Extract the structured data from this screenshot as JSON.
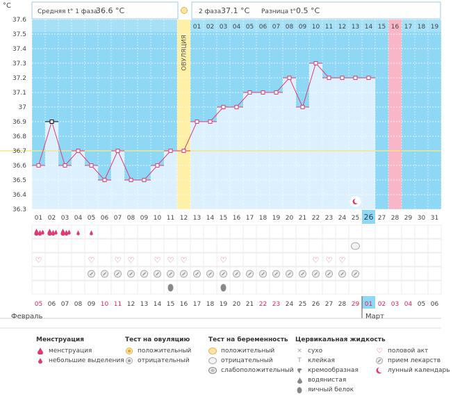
{
  "header": {
    "unit": "°C",
    "phase1_label": "Средняя t° 1 фаза",
    "phase1_value": "36.6 °C",
    "phase2_label": "2 фаза",
    "phase2_value": "37.1 °C",
    "diff_label": "Разница t°",
    "diff_value": "0.5 °C"
  },
  "ovulation_label": "ОВУЛЯЦИЯ",
  "months": {
    "first": "Февраль",
    "second": "Март"
  },
  "colors": {
    "sky": "#8fd8f5",
    "bar": "#dcf1fd",
    "ovulation": "#fff0a8",
    "highlight_day": "#f9b6c7",
    "line": "#e03a72",
    "today": "#8fd8f5",
    "red_date": "#e0245a"
  },
  "chart_data": {
    "type": "line",
    "y_ticks": [
      "37.6",
      "37.5",
      "37.4",
      "37.3",
      "37.2",
      "37.1",
      "37",
      "36.9",
      "36.8",
      "36.7",
      "36.6",
      "36.5",
      "36.4",
      "36.3"
    ],
    "ylim": [
      36.3,
      37.6
    ],
    "coverline": 36.7,
    "x": [
      "01",
      "02",
      "03",
      "04",
      "05",
      "06",
      "07",
      "08",
      "09",
      "10",
      "11",
      "12",
      "13",
      "14",
      "15",
      "16",
      "17",
      "18",
      "19",
      "20",
      "21",
      "22",
      "23",
      "24",
      "25",
      "26",
      "27",
      "28",
      "29",
      "30",
      "31"
    ],
    "values": [
      36.6,
      36.9,
      36.6,
      36.7,
      36.6,
      36.5,
      36.7,
      36.5,
      36.5,
      36.6,
      36.7,
      36.7,
      36.9,
      36.9,
      37.0,
      37.0,
      37.1,
      37.1,
      37.1,
      37.2,
      37.0,
      37.3,
      37.2,
      37.2,
      37.2,
      37.2,
      null,
      null,
      null,
      null,
      null
    ],
    "ovulation_day": 12,
    "today_index": 26,
    "highlight_day": 28,
    "marked_point": 2,
    "moon_day": 25,
    "top_cycle_days": [
      "01",
      "02",
      "03",
      "04",
      "05",
      "06",
      "07",
      "08",
      "09",
      "10",
      "11",
      "12",
      "13",
      "14",
      "15",
      "16",
      "17",
      "18",
      "19"
    ],
    "top_cycle_start": 13,
    "dates": [
      "05",
      "06",
      "07",
      "08",
      "09",
      "10",
      "11",
      "12",
      "13",
      "14",
      "15",
      "16",
      "17",
      "18",
      "19",
      "20",
      "21",
      "22",
      "23",
      "24",
      "25",
      "26",
      "27",
      "28",
      "29",
      "01",
      "02",
      "03",
      "04",
      "05",
      "06"
    ],
    "red_dates": [
      1,
      6,
      7,
      18,
      19,
      25,
      26,
      28,
      29
    ],
    "march_start": 26
  },
  "rows": {
    "menstruation_big": [
      1,
      2,
      3
    ],
    "menstruation_small": [
      4,
      5
    ],
    "pregnancy_test_neg": [
      25
    ],
    "intercourse": [
      1,
      5,
      7,
      8,
      10,
      11,
      12,
      15,
      22,
      23,
      24
    ],
    "medicine": [
      5,
      6,
      7,
      8,
      9,
      10,
      11,
      12,
      13,
      14,
      15,
      16,
      17,
      18,
      19,
      20,
      21,
      22,
      23,
      24,
      25
    ],
    "egg_white": [
      11,
      15
    ]
  },
  "legend": {
    "menstruation": {
      "title": "Менструация",
      "items": [
        "менструация",
        "небольшие выделения"
      ]
    },
    "ovulation_test": {
      "title": "Тест на овуляцию",
      "items": [
        "положительный",
        "отрицательный"
      ]
    },
    "pregnancy_test": {
      "title": "Тест на беременность",
      "items": [
        "положительный",
        "отрицательный",
        "слабоположительный"
      ]
    },
    "cervical": {
      "title": "Цервикальная жидкость",
      "items": [
        "сухо",
        "клейкая",
        "кремообразная",
        "водянистая",
        "яичный белок"
      ]
    },
    "other": {
      "items": [
        "половой акт",
        "прием лекарств",
        "лунный календарь"
      ]
    }
  }
}
